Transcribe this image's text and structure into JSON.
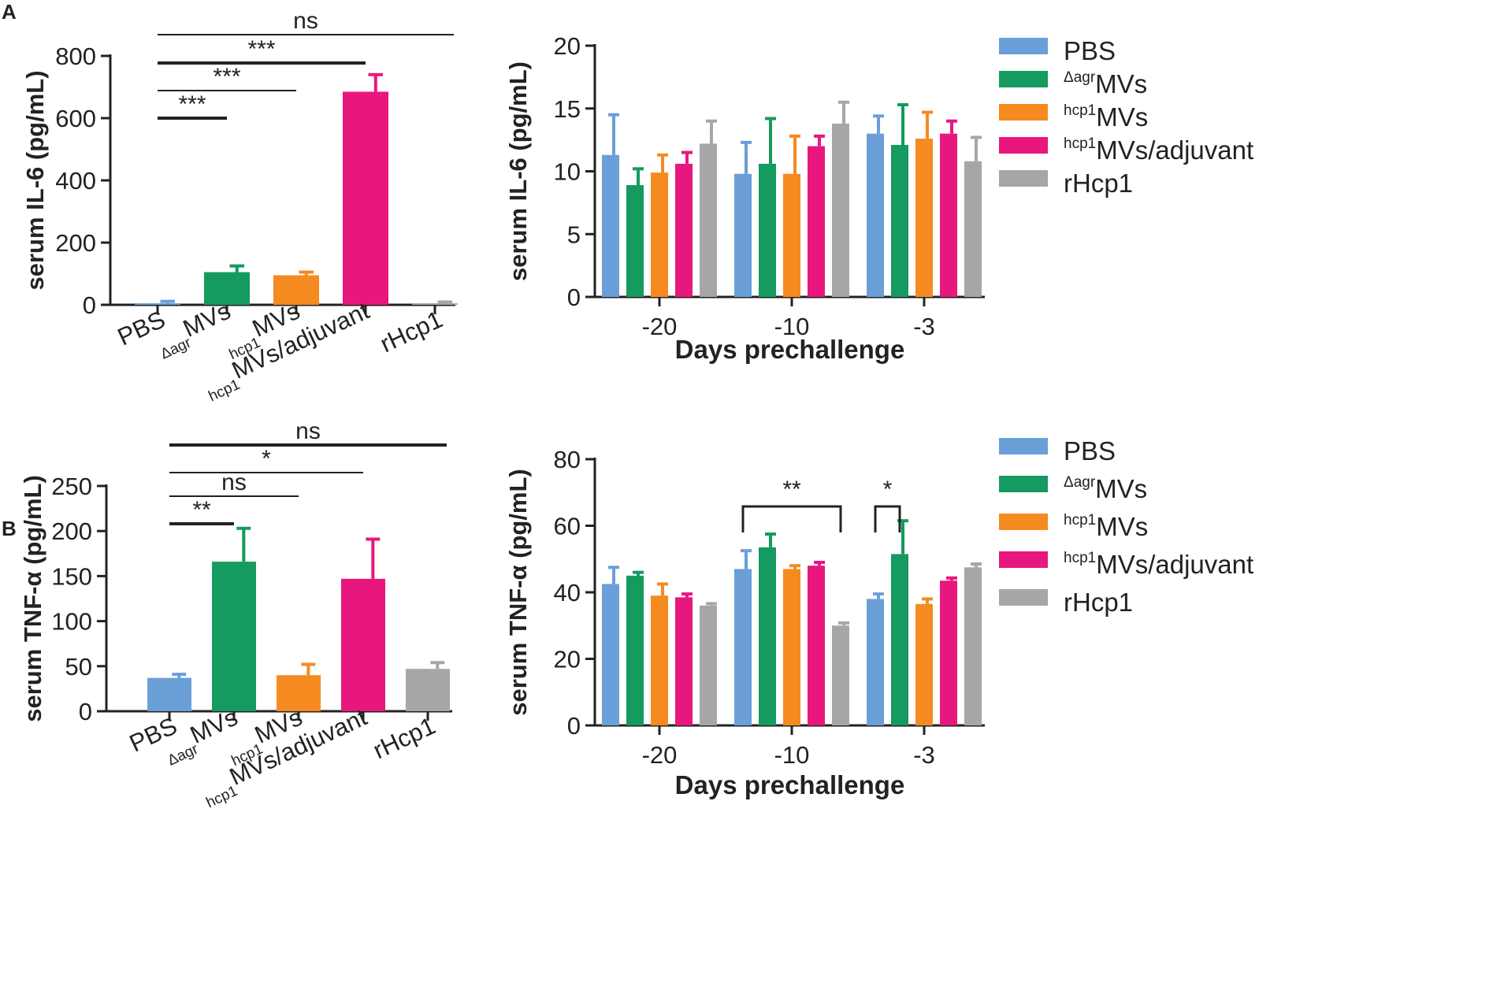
{
  "panels": [
    {
      "id": "A",
      "label": "A"
    },
    {
      "id": "B",
      "label": "B"
    }
  ],
  "colors": {
    "PBS": "#6a9fd8",
    "agr": "#159a5f",
    "hcp1": "#f58a21",
    "adj": "#e8177e",
    "rHcp1": "#a6a6a9"
  },
  "chart_data": [
    {
      "type": "bar",
      "panel": "A",
      "ylabel": "serum IL-6 (pg/mL)",
      "ylim": [
        0,
        800
      ],
      "yticks": [
        0,
        200,
        400,
        600,
        800
      ],
      "categories": [
        {
          "key": "PBS",
          "sup": "",
          "text": "PBS"
        },
        {
          "key": "agr",
          "sup": "Δagr",
          "text": "MVs"
        },
        {
          "key": "hcp1",
          "sup": "hcp1",
          "text": "MVs"
        },
        {
          "key": "adj",
          "sup": "hcp1",
          "text": "MVs/adjuvant"
        },
        {
          "key": "rHcp1",
          "sup": "",
          "text": "rHcp1"
        }
      ],
      "values": [
        5,
        105,
        95,
        685,
        5
      ],
      "errors": [
        6,
        20,
        10,
        55,
        4
      ],
      "significance": [
        {
          "from": 0,
          "to": 4,
          "label": "ns",
          "bold": false
        },
        {
          "from": 0,
          "to": 3,
          "label": "***",
          "bold": true
        },
        {
          "from": 0,
          "to": 2,
          "label": "***",
          "bold": false
        },
        {
          "from": 0,
          "to": 1,
          "label": "***",
          "bold": true
        }
      ]
    },
    {
      "type": "bar",
      "panel": "A",
      "ylabel": "serum IL-6 (pg/mL)",
      "xlabel": "Days prechallenge",
      "ylim": [
        0,
        20
      ],
      "yticks": [
        0,
        5,
        10,
        15,
        20
      ],
      "categories": [
        "-20",
        "-10",
        "-3"
      ],
      "series": [
        {
          "key": "PBS",
          "sup": "",
          "name": "PBS",
          "values": [
            11.3,
            9.8,
            13.0
          ],
          "errors": [
            3.2,
            2.5,
            1.4
          ]
        },
        {
          "key": "agr",
          "sup": "Δagr",
          "name": "MVs",
          "values": [
            8.9,
            10.6,
            12.1
          ],
          "errors": [
            1.3,
            3.6,
            3.2
          ]
        },
        {
          "key": "hcp1",
          "sup": "hcp1",
          "name": "MVs",
          "values": [
            9.9,
            9.8,
            12.6
          ],
          "errors": [
            1.4,
            3.0,
            2.1
          ]
        },
        {
          "key": "adj",
          "sup": "hcp1",
          "name": "MVs/adjuvant",
          "values": [
            10.6,
            12.0,
            13.0
          ],
          "errors": [
            0.9,
            0.8,
            1.0
          ]
        },
        {
          "key": "rHcp1",
          "sup": "",
          "name": "rHcp1",
          "values": [
            12.2,
            13.8,
            10.8
          ],
          "errors": [
            1.8,
            1.7,
            1.9
          ]
        }
      ],
      "significance": []
    },
    {
      "type": "bar",
      "panel": "B",
      "ylabel": "serum TNF-α (pg/mL)",
      "ylim": [
        0,
        250
      ],
      "yticks": [
        0,
        50,
        100,
        150,
        200,
        250
      ],
      "categories": [
        {
          "key": "PBS",
          "sup": "",
          "text": "PBS"
        },
        {
          "key": "agr",
          "sup": "Δagr",
          "text": "MVs"
        },
        {
          "key": "hcp1",
          "sup": "hcp1",
          "text": "MVs"
        },
        {
          "key": "adj",
          "sup": "hcp1",
          "text": "MVs/adjuvant"
        },
        {
          "key": "rHcp1",
          "sup": "",
          "text": "rHcp1"
        }
      ],
      "values": [
        37,
        166,
        40,
        147,
        47
      ],
      "errors": [
        4,
        37,
        12,
        44,
        7
      ],
      "significance": [
        {
          "from": 0,
          "to": 4,
          "label": "ns",
          "bold": true
        },
        {
          "from": 0,
          "to": 3,
          "label": "*",
          "bold": false
        },
        {
          "from": 0,
          "to": 2,
          "label": "ns",
          "bold": false
        },
        {
          "from": 0,
          "to": 1,
          "label": "**",
          "bold": true
        }
      ]
    },
    {
      "type": "bar",
      "panel": "B",
      "ylabel": "serum TNF-α (pg/mL)",
      "xlabel": "Days prechallenge",
      "ylim": [
        0,
        80
      ],
      "yticks": [
        0,
        20,
        40,
        60,
        80
      ],
      "categories": [
        "-20",
        "-10",
        "-3"
      ],
      "series": [
        {
          "key": "PBS",
          "sup": "",
          "name": "PBS",
          "values": [
            42.5,
            47.0,
            38.0
          ],
          "errors": [
            5.0,
            5.5,
            1.5
          ]
        },
        {
          "key": "agr",
          "sup": "Δagr",
          "name": "MVs",
          "values": [
            45.0,
            53.5,
            51.5
          ],
          "errors": [
            1.0,
            4.0,
            10.0
          ]
        },
        {
          "key": "hcp1",
          "sup": "hcp1",
          "name": "MVs",
          "values": [
            39.0,
            47.0,
            36.5
          ],
          "errors": [
            3.5,
            1.0,
            1.5
          ]
        },
        {
          "key": "adj",
          "sup": "hcp1",
          "name": "MVs/adjuvant",
          "values": [
            38.5,
            48.0,
            43.5
          ],
          "errors": [
            1.0,
            1.0,
            0.8
          ]
        },
        {
          "key": "rHcp1",
          "sup": "",
          "name": "rHcp1",
          "values": [
            36.0,
            30.0,
            47.5
          ],
          "errors": [
            0.6,
            0.8,
            1.0
          ]
        }
      ],
      "significance": [
        {
          "group": 1,
          "from": 0,
          "to": 4,
          "label": "**"
        },
        {
          "group": 2,
          "from": 0,
          "to": 1,
          "label": "*"
        }
      ]
    }
  ]
}
